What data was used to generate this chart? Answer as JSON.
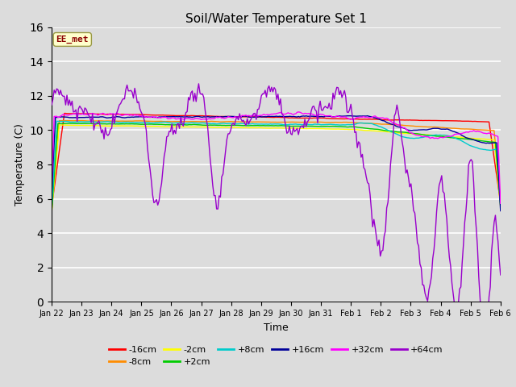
{
  "title": "Soil/Water Temperature Set 1",
  "xlabel": "Time",
  "ylabel": "Temperature (C)",
  "ylim": [
    0,
    16
  ],
  "yticks": [
    0,
    2,
    4,
    6,
    8,
    10,
    12,
    14,
    16
  ],
  "plot_bg_color": "#dcdcdc",
  "fig_bg_color": "#dcdcdc",
  "annotation_text": "EE_met",
  "annotation_color": "#8b0000",
  "annotation_bg": "#ffffcc",
  "series_colors": {
    "-16cm": "#ff0000",
    "-8cm": "#ff8c00",
    "-2cm": "#ffff00",
    "+2cm": "#00cc00",
    "+8cm": "#00cccc",
    "+16cm": "#000099",
    "+32cm": "#ff00ff",
    "+64cm": "#9900cc"
  },
  "x_labels": [
    "Jan 22",
    "Jan 23",
    "Jan 24",
    "Jan 25",
    "Jan 26",
    "Jan 27",
    "Jan 28",
    "Jan 29",
    "Jan 30",
    "Jan 31",
    "Feb 1",
    "Feb 2",
    "Feb 3",
    "Feb 4",
    "Feb 5",
    "Feb 6"
  ],
  "n_points": 352
}
